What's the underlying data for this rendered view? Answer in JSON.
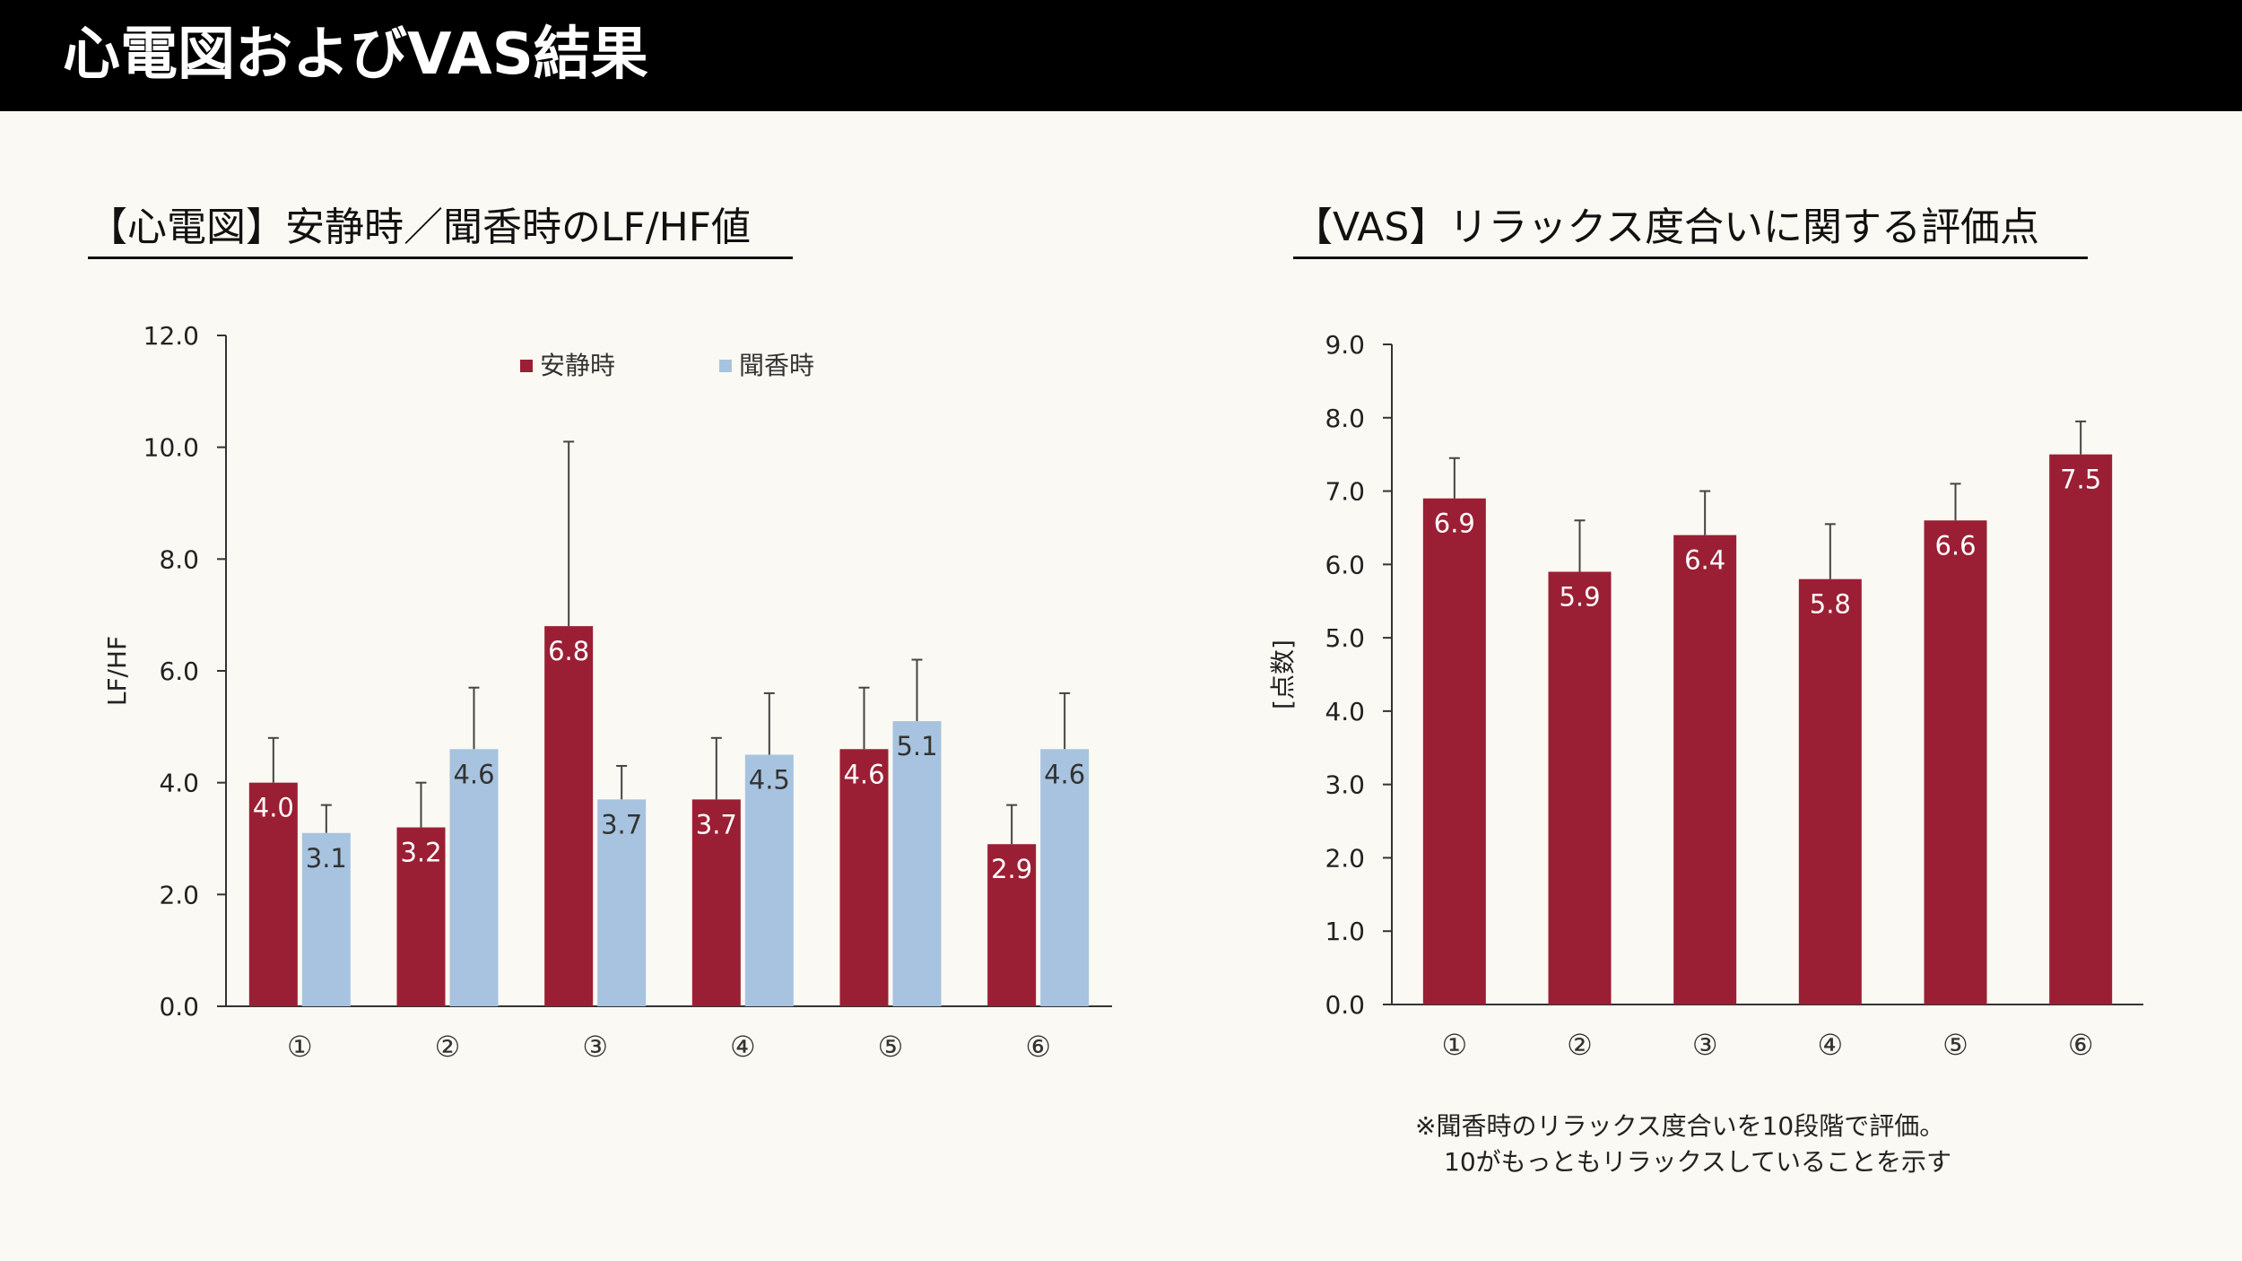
{
  "header": {
    "title": "心電図およびVAS結果"
  },
  "colors": {
    "rest": "#9b1f34",
    "incense": "#a7c3df",
    "axis": "#333333",
    "background": "#fbf9f3"
  },
  "chart_data": [
    {
      "type": "bar",
      "title": "【心電図】安静時／聞香時のLF/HF値",
      "ylabel": "LF/HF",
      "xlabel": "",
      "ylim": [
        0,
        12
      ],
      "yticks": [
        "0.0",
        "2.0",
        "4.0",
        "6.0",
        "8.0",
        "10.0",
        "12.0"
      ],
      "categories": [
        "①",
        "②",
        "③",
        "④",
        "⑤",
        "⑥"
      ],
      "legend_position": "top",
      "grid": false,
      "series": [
        {
          "name": "安静時",
          "color": "#9b1f34",
          "values": [
            4.0,
            3.2,
            6.8,
            3.7,
            4.6,
            2.9
          ],
          "labels": [
            "4.0",
            "3.2",
            "6.8",
            "3.7",
            "4.6",
            "2.9"
          ],
          "error": [
            0.8,
            0.8,
            3.3,
            1.1,
            1.1,
            0.7
          ]
        },
        {
          "name": "聞香時",
          "color": "#a7c3df",
          "values": [
            3.1,
            4.6,
            3.7,
            4.5,
            5.1,
            4.6
          ],
          "labels": [
            "3.1",
            "4.6",
            "3.7",
            "4.5",
            "5.1",
            "4.6"
          ],
          "error": [
            0.5,
            1.1,
            0.6,
            1.1,
            1.1,
            1.0
          ]
        }
      ]
    },
    {
      "type": "bar",
      "title": "【VAS】リラックス度合いに関する評価点",
      "ylabel": "[点数]",
      "xlabel": "",
      "ylim": [
        0,
        9
      ],
      "yticks": [
        "0.0",
        "1.0",
        "2.0",
        "3.0",
        "4.0",
        "5.0",
        "6.0",
        "7.0",
        "8.0",
        "9.0"
      ],
      "categories": [
        "①",
        "②",
        "③",
        "④",
        "⑤",
        "⑥"
      ],
      "grid": false,
      "series": [
        {
          "color": "#9b1f34",
          "values": [
            6.9,
            5.9,
            6.4,
            5.8,
            6.6,
            7.5
          ],
          "labels": [
            "6.9",
            "5.9",
            "6.4",
            "5.8",
            "6.6",
            "7.5"
          ],
          "error": [
            0.55,
            0.7,
            0.6,
            0.75,
            0.5,
            0.45
          ]
        }
      ],
      "note": [
        "※聞香時のリラックス度合いを10段階で評価。",
        "10がもっともリラックスしていることを示す"
      ]
    }
  ]
}
